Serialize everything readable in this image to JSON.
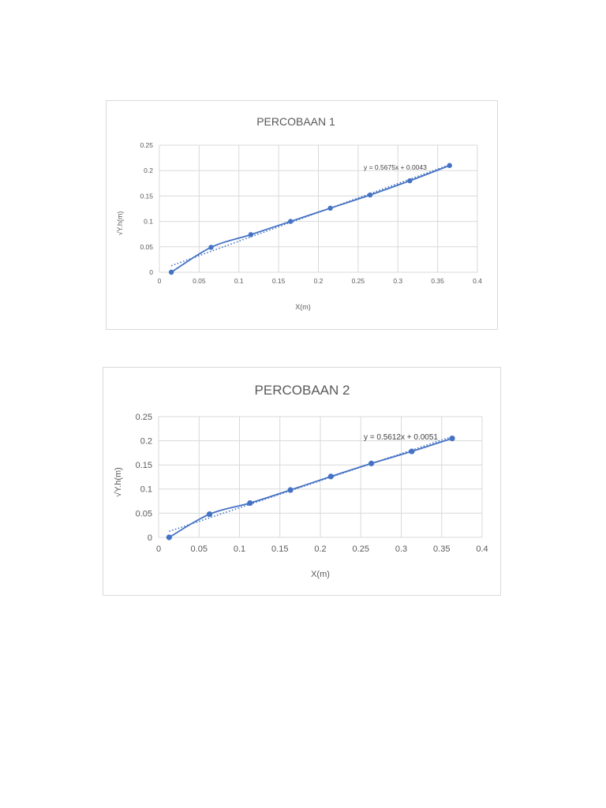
{
  "chart_data": [
    {
      "type": "scatter",
      "title": "PERCOBAAN 1",
      "xlabel": "X(m)",
      "ylabel": "√Y.h(m)",
      "xlim": [
        0,
        0.4
      ],
      "ylim": [
        0,
        0.25
      ],
      "xticks": [
        "0",
        "0.05",
        "0.1",
        "0.15",
        "0.2",
        "0.25",
        "0.3",
        "0.35",
        "0.4"
      ],
      "yticks": [
        "0",
        "0.05",
        "0.1",
        "0.15",
        "0.2",
        "0.25"
      ],
      "grid": true,
      "series": [
        {
          "x": [
            0.015,
            0.065,
            0.115,
            0.165,
            0.215,
            0.265,
            0.315,
            0.365
          ],
          "y": [
            0.0,
            0.049,
            0.074,
            0.1,
            0.126,
            0.152,
            0.18,
            0.21
          ],
          "color": "#4472c4",
          "style": "smoothed line with markers"
        }
      ],
      "trendline": {
        "slope": 0.5675,
        "intercept": 0.0043,
        "equation": "y = 0.5675x + 0.0043",
        "color": "#4472c4",
        "style": "dotted"
      }
    },
    {
      "type": "scatter",
      "title": "PERCOBAAN 2",
      "xlabel": "X(m)",
      "ylabel": "√Y.h(m)",
      "xlim": [
        0,
        0.4
      ],
      "ylim": [
        0,
        0.25
      ],
      "xticks": [
        "0",
        "0.05",
        "0.1",
        "0.15",
        "0.2",
        "0.25",
        "0.3",
        "0.35",
        "0.4"
      ],
      "yticks": [
        "0",
        "0.05",
        "0.1",
        "0.15",
        "0.2",
        "0.25"
      ],
      "grid": true,
      "series": [
        {
          "x": [
            0.013,
            0.063,
            0.113,
            0.163,
            0.213,
            0.263,
            0.313,
            0.363
          ],
          "y": [
            0.0,
            0.048,
            0.071,
            0.098,
            0.126,
            0.153,
            0.178,
            0.205
          ],
          "color": "#4472c4",
          "style": "smoothed line with markers"
        }
      ],
      "trendline": {
        "slope": 0.5612,
        "intercept": 0.0051,
        "equation": "y = 0.5612x + 0.0051",
        "color": "#4472c4",
        "style": "dotted"
      }
    }
  ]
}
